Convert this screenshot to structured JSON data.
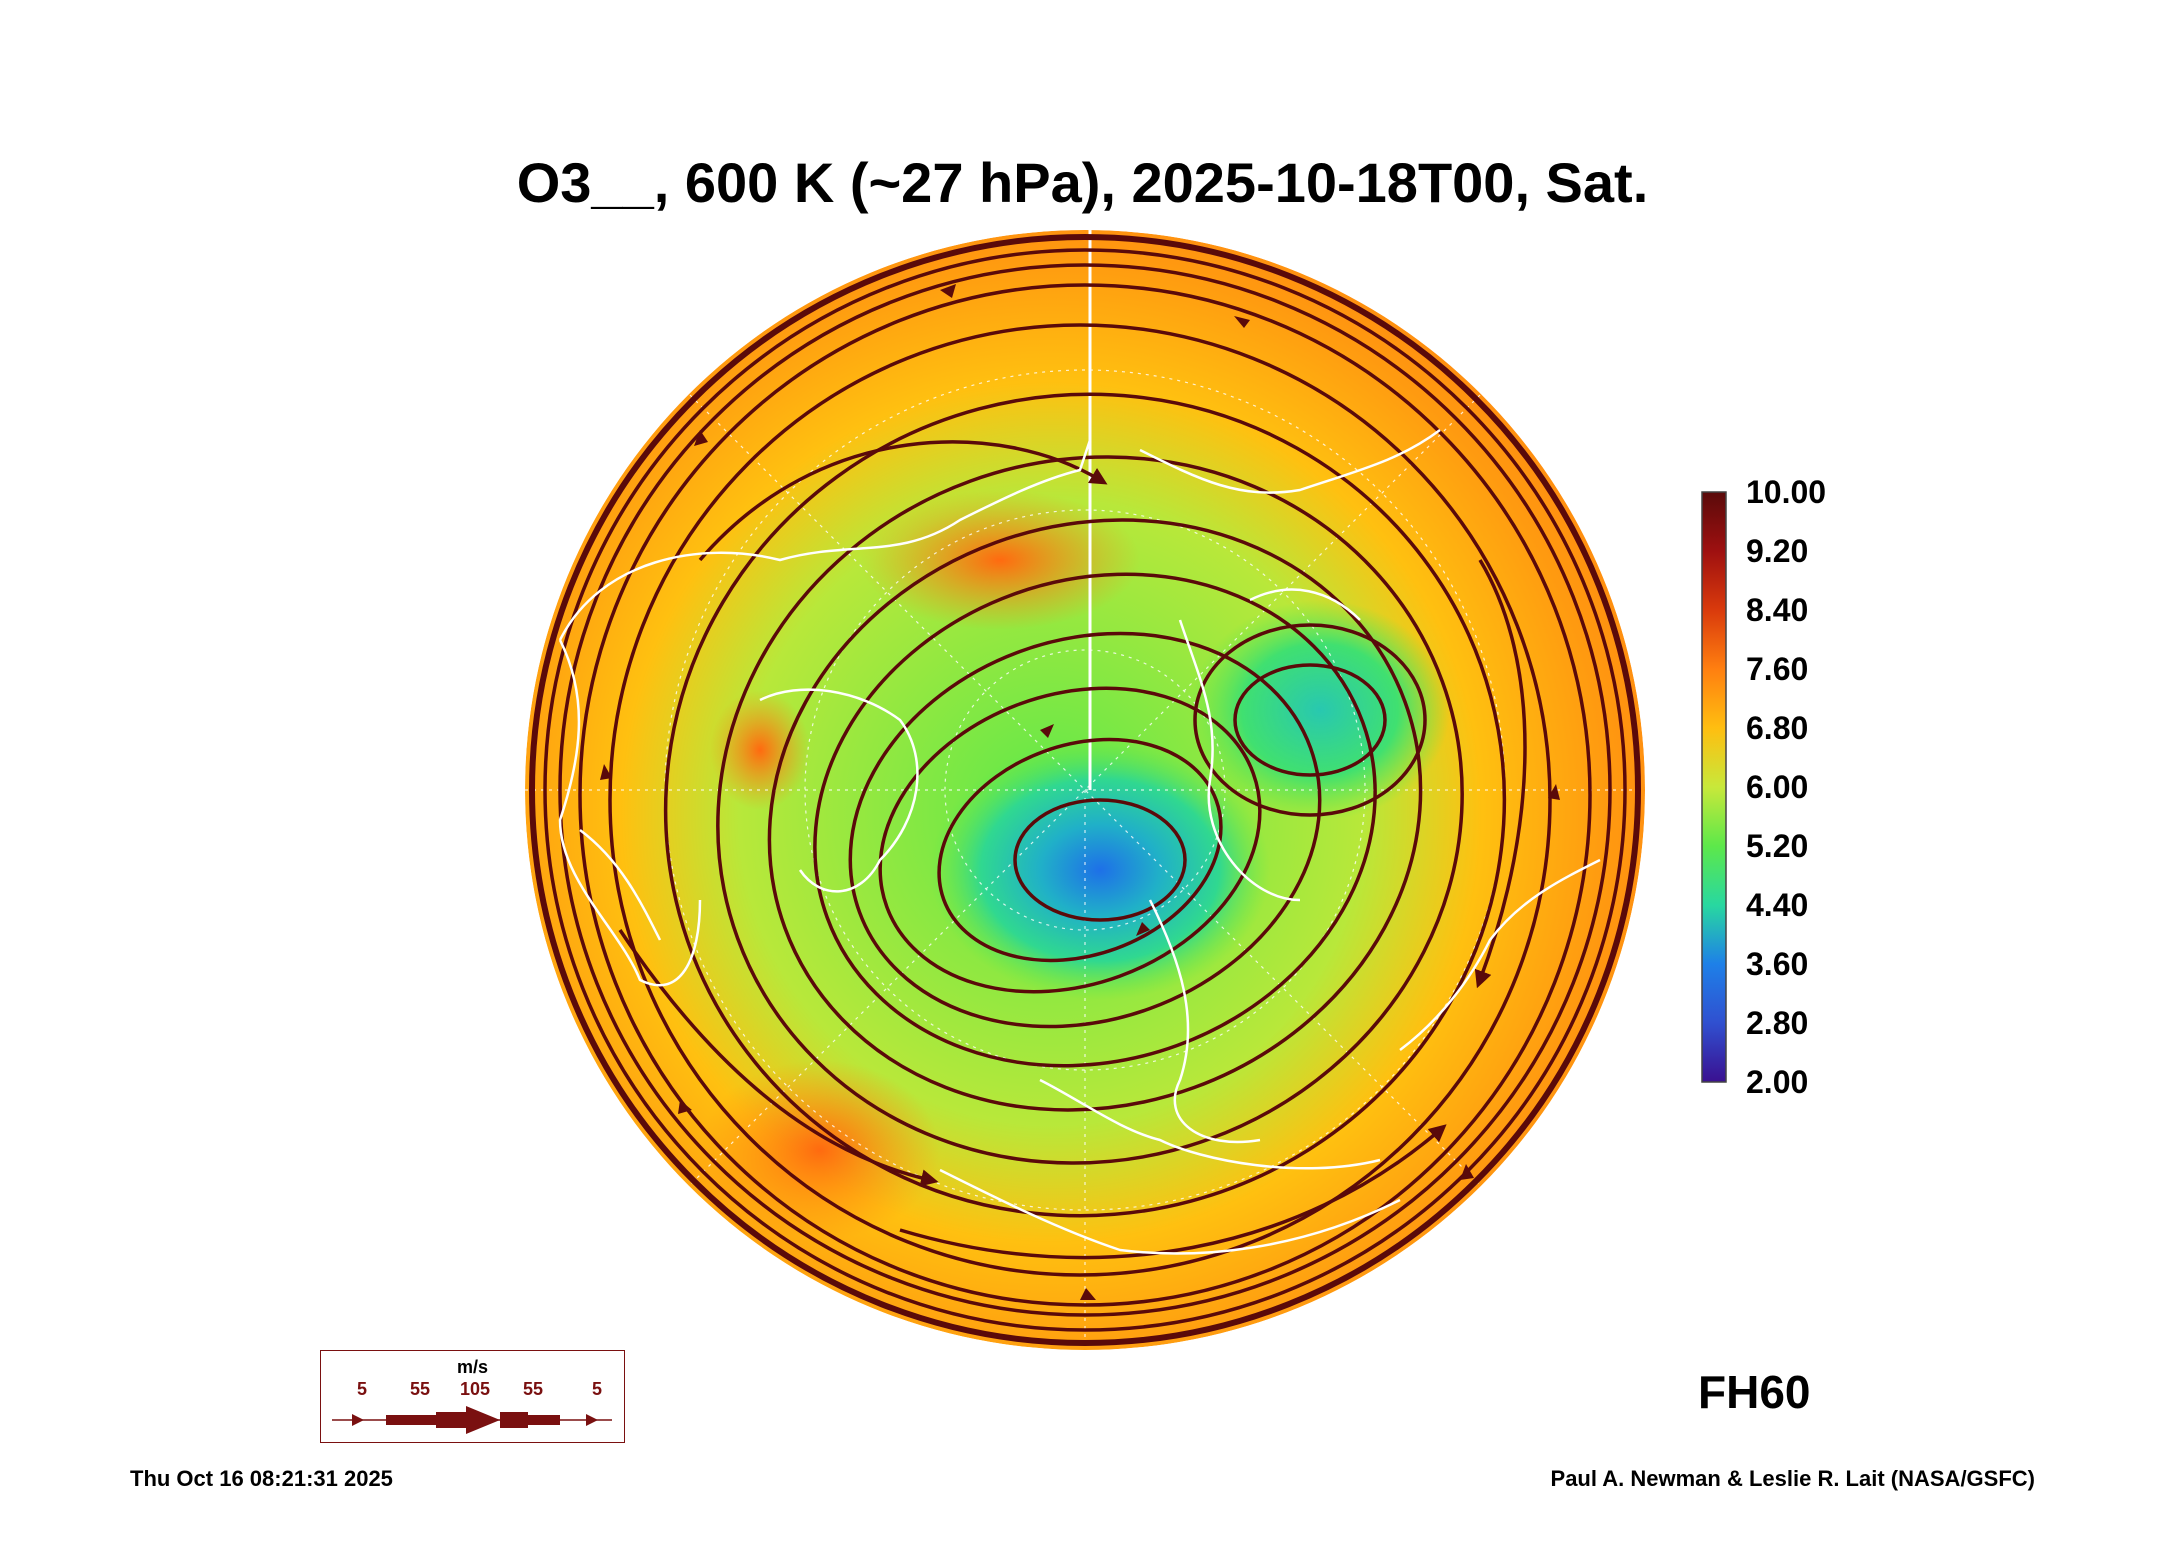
{
  "title": "O3__, 600 K (~27 hPa), 2025-10-18T00, Sat.",
  "colorbar": {
    "labels": [
      "10.00",
      "9.20",
      "8.40",
      "7.60",
      "6.80",
      "6.00",
      "5.20",
      "4.40",
      "3.60",
      "2.80",
      "2.00"
    ],
    "colors": [
      "#5a0a0a",
      "#9e1010",
      "#d93a0c",
      "#ff7f10",
      "#ffbe10",
      "#c8e83a",
      "#5de84a",
      "#28d8a0",
      "#1e80e8",
      "#3050d0",
      "#3a1090"
    ]
  },
  "legend": {
    "unit": "m/s",
    "ticks": [
      "5",
      "55",
      "105",
      "55",
      "5"
    ]
  },
  "forecast_hour": "FH60",
  "timestamp": "Thu Oct 16 08:21:31 2025",
  "credit": "Paul A. Newman & Leslie R. Lait (NASA/GSFC)",
  "colors": {
    "streamline": "#5a0a0a",
    "coast": "#ffffff",
    "high_o3": "#ff8a10",
    "low_o3": "#1e80e8"
  }
}
